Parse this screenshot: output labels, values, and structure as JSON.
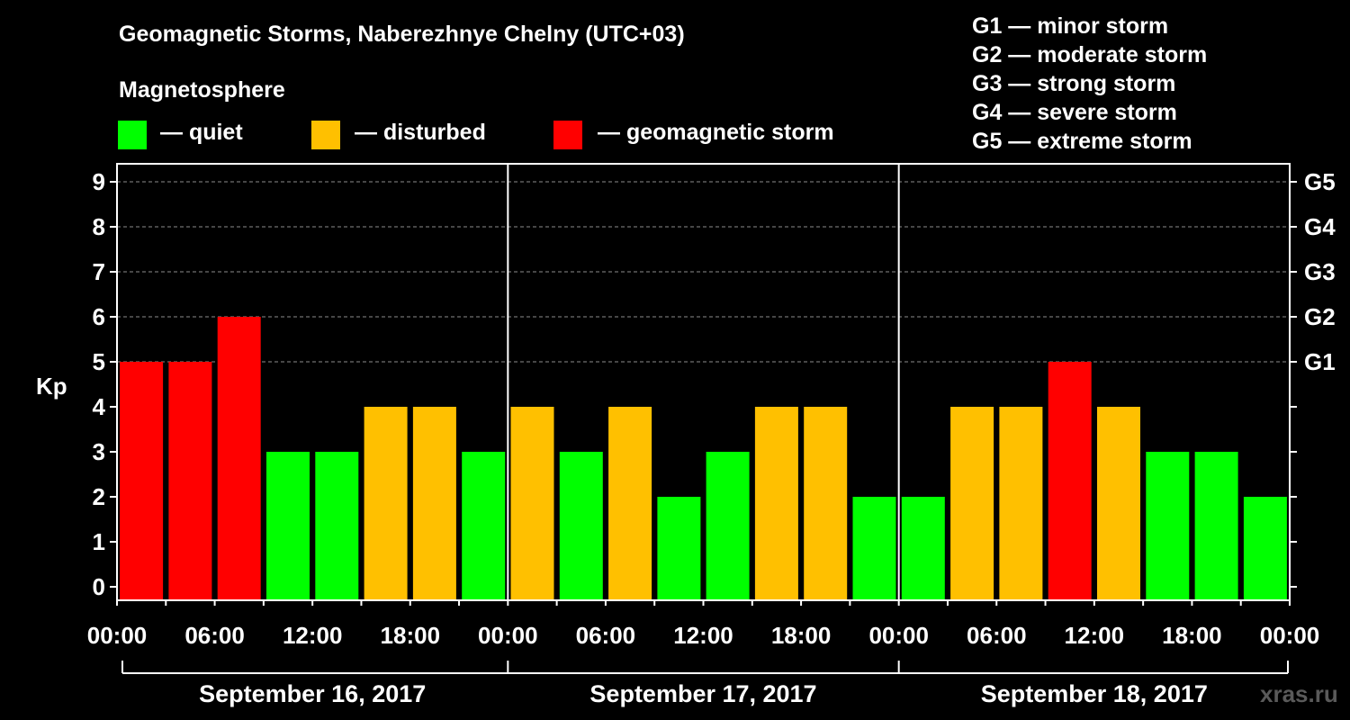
{
  "header": {
    "title": "Geomagnetic Storms, Naberezhnye Chelny (UTC+03)",
    "subtitle": "Magnetosphere"
  },
  "legend": [
    {
      "label": "— quiet",
      "color": "#00ff00"
    },
    {
      "label": "— disturbed",
      "color": "#ffc000"
    },
    {
      "label": "— geomagnetic storm",
      "color": "#ff0000"
    }
  ],
  "g_scale": [
    "G1 — minor storm",
    "G2 — moderate storm",
    "G3 — strong storm",
    "G4 — severe storm",
    "G5 — extreme storm"
  ],
  "watermark": "xras.ru",
  "chart_data": {
    "type": "bar",
    "ylabel": "Kp",
    "ylim": [
      0,
      9
    ],
    "yticks": [
      "0",
      "1",
      "2",
      "3",
      "4",
      "5",
      "6",
      "7",
      "8",
      "9"
    ],
    "right_ticks": [
      {
        "value": 5,
        "label": "G1"
      },
      {
        "value": 6,
        "label": "G2"
      },
      {
        "value": 7,
        "label": "G3"
      },
      {
        "value": 8,
        "label": "G4"
      },
      {
        "value": 9,
        "label": "G5"
      }
    ],
    "xtick_labels": [
      "00:00",
      "06:00",
      "12:00",
      "18:00",
      "00:00",
      "06:00",
      "12:00",
      "18:00",
      "00:00",
      "06:00",
      "12:00",
      "18:00",
      "00:00"
    ],
    "days": [
      "September 16, 2017",
      "September 17, 2017",
      "September 18, 2017"
    ],
    "values": [
      5,
      5,
      6,
      3,
      3,
      4,
      4,
      3,
      4,
      3,
      4,
      2,
      3,
      4,
      4,
      2,
      2,
      4,
      4,
      5,
      4,
      3,
      3,
      2
    ],
    "category_colors": {
      "quiet": "#00ff00",
      "disturbed": "#ffc000",
      "storm": "#ff0000"
    },
    "grid_dashed_levels": [
      5,
      6,
      7,
      8,
      9
    ]
  }
}
